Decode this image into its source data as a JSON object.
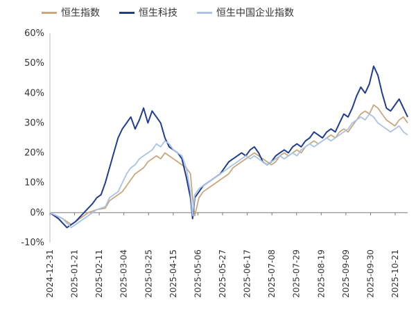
{
  "chart_data": {
    "type": "line",
    "title": "",
    "xlabel": "",
    "ylabel": "",
    "ylim": [
      -10,
      60
    ],
    "yticks": [
      "-10%",
      "0%",
      "10%",
      "20%",
      "30%",
      "40%",
      "50%",
      "60%"
    ],
    "xtick_labels": [
      "2024-12-31",
      "2025-01-21",
      "2025-02-11",
      "2025-03-04",
      "2025-03-25",
      "2025-04-15",
      "2025-05-06",
      "2025-05-27",
      "2025-06-17",
      "2025-07-08",
      "2025-07-29",
      "2025-08-19",
      "2025-09-09",
      "2025-09-30",
      "2025-10-21"
    ],
    "legend_position": "top",
    "series": [
      {
        "name": "恒生指数",
        "color": "#c9a77c",
        "values": [
          [
            0,
            0
          ],
          [
            3,
            -2
          ],
          [
            5,
            -4
          ],
          [
            7,
            -2
          ],
          [
            9,
            0
          ],
          [
            11,
            1
          ],
          [
            13,
            1.5
          ],
          [
            14,
            4
          ],
          [
            16,
            6
          ],
          [
            17,
            7
          ],
          [
            18,
            9
          ],
          [
            19,
            11
          ],
          [
            20,
            13
          ],
          [
            21,
            14
          ],
          [
            22,
            15
          ],
          [
            23,
            17
          ],
          [
            24,
            18
          ],
          [
            25,
            19
          ],
          [
            26,
            18
          ],
          [
            27,
            20
          ],
          [
            28,
            19
          ],
          [
            29,
            18
          ],
          [
            30,
            17
          ],
          [
            31,
            16
          ],
          [
            32,
            15
          ],
          [
            33,
            13
          ],
          [
            33.5,
            5
          ],
          [
            34,
            -1
          ],
          [
            35,
            5
          ],
          [
            36,
            7
          ],
          [
            37,
            8
          ],
          [
            38,
            9
          ],
          [
            39,
            10
          ],
          [
            40,
            11
          ],
          [
            41,
            12
          ],
          [
            42,
            13
          ],
          [
            43,
            15
          ],
          [
            44,
            16
          ],
          [
            45,
            17
          ],
          [
            46,
            18
          ],
          [
            47,
            19
          ],
          [
            48,
            20
          ],
          [
            49,
            19
          ],
          [
            50,
            18
          ],
          [
            51,
            17
          ],
          [
            52,
            16
          ],
          [
            53,
            17
          ],
          [
            54,
            19
          ],
          [
            55,
            20
          ],
          [
            56,
            19
          ],
          [
            57,
            20
          ],
          [
            58,
            21
          ],
          [
            59,
            20
          ],
          [
            60,
            22
          ],
          [
            61,
            23
          ],
          [
            62,
            24
          ],
          [
            63,
            23
          ],
          [
            64,
            24
          ],
          [
            65,
            25
          ],
          [
            66,
            26
          ],
          [
            67,
            25
          ],
          [
            68,
            27
          ],
          [
            69,
            28
          ],
          [
            70,
            27
          ],
          [
            71,
            29
          ],
          [
            72,
            31
          ],
          [
            73,
            33
          ],
          [
            74,
            34
          ],
          [
            75,
            33
          ],
          [
            76,
            36
          ],
          [
            77,
            35
          ],
          [
            78,
            33
          ],
          [
            79,
            31
          ],
          [
            80,
            30
          ],
          [
            81,
            29
          ],
          [
            82,
            31
          ],
          [
            83,
            32
          ],
          [
            84,
            30
          ]
        ]
      },
      {
        "name": "恒生科技",
        "color": "#1f3c8f",
        "values": [
          [
            0,
            0
          ],
          [
            2,
            -2
          ],
          [
            4,
            -5
          ],
          [
            6,
            -3
          ],
          [
            8,
            0
          ],
          [
            10,
            3
          ],
          [
            11,
            5
          ],
          [
            12,
            6
          ],
          [
            13,
            10
          ],
          [
            14,
            15
          ],
          [
            15,
            20
          ],
          [
            16,
            25
          ],
          [
            17,
            28
          ],
          [
            18,
            30
          ],
          [
            19,
            32
          ],
          [
            20,
            28
          ],
          [
            21,
            31
          ],
          [
            22,
            35
          ],
          [
            23,
            30
          ],
          [
            24,
            34
          ],
          [
            25,
            32
          ],
          [
            26,
            30
          ],
          [
            27,
            25
          ],
          [
            28,
            22
          ],
          [
            29,
            21
          ],
          [
            30,
            20
          ],
          [
            31,
            18
          ],
          [
            32,
            12
          ],
          [
            33,
            5
          ],
          [
            33.5,
            -2
          ],
          [
            34,
            5
          ],
          [
            35,
            7
          ],
          [
            36,
            9
          ],
          [
            37,
            10
          ],
          [
            38,
            11
          ],
          [
            39,
            12
          ],
          [
            40,
            13
          ],
          [
            41,
            15
          ],
          [
            42,
            17
          ],
          [
            43,
            18
          ],
          [
            44,
            19
          ],
          [
            45,
            20
          ],
          [
            46,
            19
          ],
          [
            47,
            21
          ],
          [
            48,
            22
          ],
          [
            49,
            20
          ],
          [
            50,
            17
          ],
          [
            51,
            16
          ],
          [
            52,
            17
          ],
          [
            53,
            19
          ],
          [
            54,
            20
          ],
          [
            55,
            21
          ],
          [
            56,
            20
          ],
          [
            57,
            22
          ],
          [
            58,
            23
          ],
          [
            59,
            22
          ],
          [
            60,
            24
          ],
          [
            61,
            25
          ],
          [
            62,
            27
          ],
          [
            63,
            26
          ],
          [
            64,
            25
          ],
          [
            65,
            27
          ],
          [
            66,
            28
          ],
          [
            67,
            27
          ],
          [
            68,
            30
          ],
          [
            69,
            33
          ],
          [
            70,
            32
          ],
          [
            71,
            35
          ],
          [
            72,
            39
          ],
          [
            73,
            42
          ],
          [
            74,
            40
          ],
          [
            75,
            43
          ],
          [
            76,
            49
          ],
          [
            77,
            46
          ],
          [
            78,
            40
          ],
          [
            79,
            35
          ],
          [
            80,
            34
          ],
          [
            81,
            36
          ],
          [
            82,
            38
          ],
          [
            83,
            35
          ],
          [
            84,
            32
          ]
        ]
      },
      {
        "name": "恒生中国企业指数",
        "color": "#a9c3e6",
        "values": [
          [
            0,
            0
          ],
          [
            3,
            -2
          ],
          [
            5,
            -5
          ],
          [
            7,
            -3
          ],
          [
            9,
            -1
          ],
          [
            11,
            1
          ],
          [
            13,
            2
          ],
          [
            14,
            5
          ],
          [
            16,
            7
          ],
          [
            17,
            10
          ],
          [
            18,
            13
          ],
          [
            19,
            15
          ],
          [
            20,
            16
          ],
          [
            21,
            18
          ],
          [
            22,
            19
          ],
          [
            23,
            20
          ],
          [
            24,
            21
          ],
          [
            25,
            23
          ],
          [
            26,
            22
          ],
          [
            27,
            24
          ],
          [
            28,
            23
          ],
          [
            29,
            21
          ],
          [
            30,
            20
          ],
          [
            31,
            19
          ],
          [
            32,
            15
          ],
          [
            33,
            7
          ],
          [
            33.5,
            -1
          ],
          [
            34,
            6
          ],
          [
            35,
            8
          ],
          [
            36,
            9
          ],
          [
            37,
            10
          ],
          [
            38,
            11
          ],
          [
            39,
            12
          ],
          [
            40,
            13
          ],
          [
            41,
            14
          ],
          [
            42,
            15
          ],
          [
            43,
            16
          ],
          [
            44,
            17
          ],
          [
            45,
            18
          ],
          [
            46,
            19
          ],
          [
            47,
            18
          ],
          [
            48,
            19
          ],
          [
            49,
            18
          ],
          [
            50,
            17
          ],
          [
            51,
            16
          ],
          [
            52,
            17
          ],
          [
            53,
            18
          ],
          [
            54,
            19
          ],
          [
            55,
            18
          ],
          [
            56,
            19
          ],
          [
            57,
            20
          ],
          [
            58,
            19
          ],
          [
            59,
            21
          ],
          [
            60,
            22
          ],
          [
            61,
            23
          ],
          [
            62,
            22
          ],
          [
            63,
            23
          ],
          [
            64,
            24
          ],
          [
            65,
            25
          ],
          [
            66,
            24
          ],
          [
            67,
            25
          ],
          [
            68,
            26
          ],
          [
            69,
            27
          ],
          [
            70,
            28
          ],
          [
            71,
            30
          ],
          [
            72,
            31
          ],
          [
            73,
            32
          ],
          [
            74,
            31
          ],
          [
            75,
            33
          ],
          [
            76,
            32
          ],
          [
            77,
            30
          ],
          [
            78,
            29
          ],
          [
            79,
            28
          ],
          [
            80,
            27
          ],
          [
            81,
            28
          ],
          [
            82,
            29
          ],
          [
            83,
            27
          ],
          [
            84,
            26
          ]
        ]
      }
    ]
  }
}
